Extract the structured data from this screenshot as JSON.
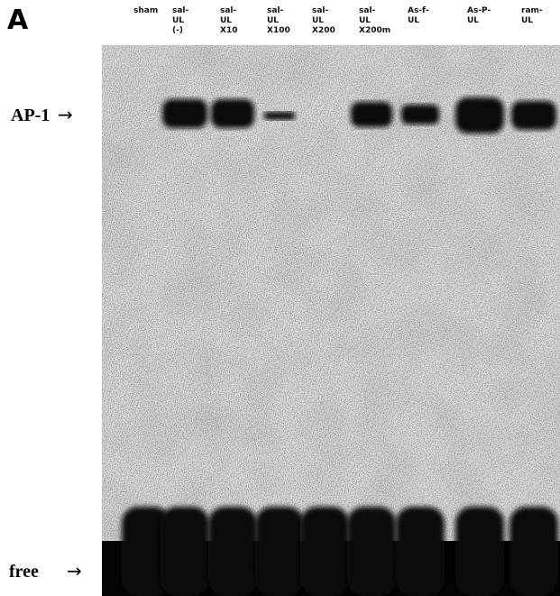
{
  "panel_label": "A",
  "lanes": [
    {
      "label": [
        "sham"
      ]
    },
    {
      "label": [
        "sal-",
        "UL",
        "(-)"
      ]
    },
    {
      "label": [
        "sal-",
        "UL",
        "X10"
      ]
    },
    {
      "label": [
        "sal-",
        "UL",
        "X100"
      ]
    },
    {
      "label": [
        "sal-",
        "UL",
        "X200"
      ]
    },
    {
      "label": [
        "sal-",
        "UL",
        "X200m"
      ]
    },
    {
      "label": [
        "As-f-",
        "UL"
      ]
    },
    {
      "label": [
        "As-P-",
        "UL"
      ]
    },
    {
      "label": [
        "ram-",
        "UL"
      ]
    }
  ],
  "markers": {
    "ap1": "AP-1",
    "free": "free"
  }
}
